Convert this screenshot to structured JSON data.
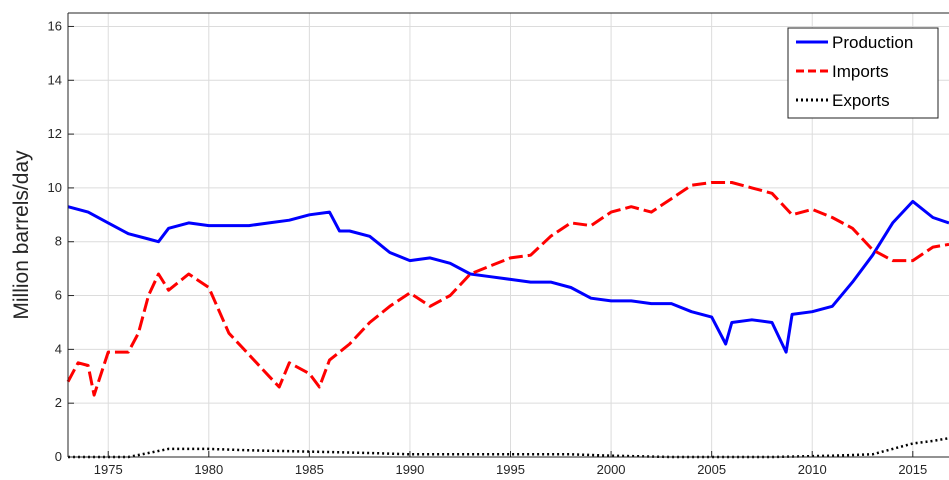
{
  "chart_data": {
    "type": "line",
    "title": "",
    "xlabel": "",
    "ylabel": "Million barrels/day",
    "xlim": [
      1973,
      2016.8
    ],
    "ylim": [
      0,
      16.5
    ],
    "x_ticks": [
      1975,
      1980,
      1985,
      1990,
      1995,
      2000,
      2005,
      2010,
      2015
    ],
    "y_ticks": [
      0,
      2,
      4,
      6,
      8,
      10,
      12,
      14,
      16
    ],
    "grid": true,
    "legend_position": "top-right",
    "series": [
      {
        "name": "Production",
        "color": "#0000ff",
        "line_style": "solid",
        "points": [
          [
            1973.0,
            9.3
          ],
          [
            1974.0,
            9.1
          ],
          [
            1975.0,
            8.7
          ],
          [
            1976.0,
            8.3
          ],
          [
            1977.0,
            8.1
          ],
          [
            1977.5,
            8.0
          ],
          [
            1978.0,
            8.5
          ],
          [
            1979.0,
            8.7
          ],
          [
            1980.0,
            8.6
          ],
          [
            1981.0,
            8.6
          ],
          [
            1982.0,
            8.6
          ],
          [
            1983.0,
            8.7
          ],
          [
            1984.0,
            8.8
          ],
          [
            1985.0,
            9.0
          ],
          [
            1986.0,
            9.1
          ],
          [
            1986.5,
            8.4
          ],
          [
            1987.0,
            8.4
          ],
          [
            1988.0,
            8.2
          ],
          [
            1989.0,
            7.6
          ],
          [
            1990.0,
            7.3
          ],
          [
            1991.0,
            7.4
          ],
          [
            1992.0,
            7.2
          ],
          [
            1993.0,
            6.8
          ],
          [
            1994.0,
            6.7
          ],
          [
            1995.0,
            6.6
          ],
          [
            1996.0,
            6.5
          ],
          [
            1997.0,
            6.5
          ],
          [
            1998.0,
            6.3
          ],
          [
            1999.0,
            5.9
          ],
          [
            2000.0,
            5.8
          ],
          [
            2001.0,
            5.8
          ],
          [
            2002.0,
            5.7
          ],
          [
            2003.0,
            5.7
          ],
          [
            2004.0,
            5.4
          ],
          [
            2005.0,
            5.2
          ],
          [
            2005.7,
            4.2
          ],
          [
            2006.0,
            5.0
          ],
          [
            2007.0,
            5.1
          ],
          [
            2008.0,
            5.0
          ],
          [
            2008.7,
            3.9
          ],
          [
            2009.0,
            5.3
          ],
          [
            2010.0,
            5.4
          ],
          [
            2011.0,
            5.6
          ],
          [
            2012.0,
            6.5
          ],
          [
            2013.0,
            7.5
          ],
          [
            2014.0,
            8.7
          ],
          [
            2015.0,
            9.5
          ],
          [
            2016.0,
            8.9
          ],
          [
            2016.8,
            8.7
          ]
        ]
      },
      {
        "name": "Imports",
        "color": "#ff0000",
        "line_style": "dashed",
        "points": [
          [
            1973.0,
            2.8
          ],
          [
            1973.5,
            3.5
          ],
          [
            1974.0,
            3.4
          ],
          [
            1974.3,
            2.3
          ],
          [
            1975.0,
            3.9
          ],
          [
            1976.0,
            3.9
          ],
          [
            1976.5,
            4.6
          ],
          [
            1977.0,
            6.0
          ],
          [
            1977.5,
            6.8
          ],
          [
            1978.0,
            6.2
          ],
          [
            1979.0,
            6.8
          ],
          [
            1980.0,
            6.3
          ],
          [
            1981.0,
            4.6
          ],
          [
            1982.0,
            3.8
          ],
          [
            1983.0,
            3.0
          ],
          [
            1983.5,
            2.6
          ],
          [
            1984.0,
            3.5
          ],
          [
            1985.0,
            3.1
          ],
          [
            1985.5,
            2.6
          ],
          [
            1986.0,
            3.6
          ],
          [
            1987.0,
            4.2
          ],
          [
            1988.0,
            5.0
          ],
          [
            1989.0,
            5.6
          ],
          [
            1990.0,
            6.1
          ],
          [
            1991.0,
            5.6
          ],
          [
            1992.0,
            6.0
          ],
          [
            1993.0,
            6.8
          ],
          [
            1994.0,
            7.1
          ],
          [
            1995.0,
            7.4
          ],
          [
            1996.0,
            7.5
          ],
          [
            1997.0,
            8.2
          ],
          [
            1998.0,
            8.7
          ],
          [
            1999.0,
            8.6
          ],
          [
            2000.0,
            9.1
          ],
          [
            2001.0,
            9.3
          ],
          [
            2002.0,
            9.1
          ],
          [
            2003.0,
            9.6
          ],
          [
            2004.0,
            10.1
          ],
          [
            2005.0,
            10.2
          ],
          [
            2006.0,
            10.2
          ],
          [
            2007.0,
            10.0
          ],
          [
            2008.0,
            9.8
          ],
          [
            2009.0,
            9.0
          ],
          [
            2010.0,
            9.2
          ],
          [
            2011.0,
            8.9
          ],
          [
            2012.0,
            8.5
          ],
          [
            2013.0,
            7.7
          ],
          [
            2014.0,
            7.3
          ],
          [
            2015.0,
            7.3
          ],
          [
            2016.0,
            7.8
          ],
          [
            2016.8,
            7.9
          ]
        ]
      },
      {
        "name": "Exports",
        "color": "#000000",
        "line_style": "dotted",
        "points": [
          [
            1973.0,
            0.0
          ],
          [
            1976.0,
            0.0
          ],
          [
            1977.0,
            0.15
          ],
          [
            1978.0,
            0.3
          ],
          [
            1980.0,
            0.3
          ],
          [
            1982.0,
            0.25
          ],
          [
            1985.0,
            0.2
          ],
          [
            1988.0,
            0.15
          ],
          [
            1990.0,
            0.1
          ],
          [
            1993.0,
            0.1
          ],
          [
            1995.0,
            0.1
          ],
          [
            1998.0,
            0.1
          ],
          [
            2000.0,
            0.05
          ],
          [
            2003.0,
            0.0
          ],
          [
            2008.0,
            0.0
          ],
          [
            2011.0,
            0.05
          ],
          [
            2013.0,
            0.1
          ],
          [
            2014.0,
            0.3
          ],
          [
            2015.0,
            0.5
          ],
          [
            2016.0,
            0.6
          ],
          [
            2016.8,
            0.7
          ]
        ]
      }
    ]
  }
}
